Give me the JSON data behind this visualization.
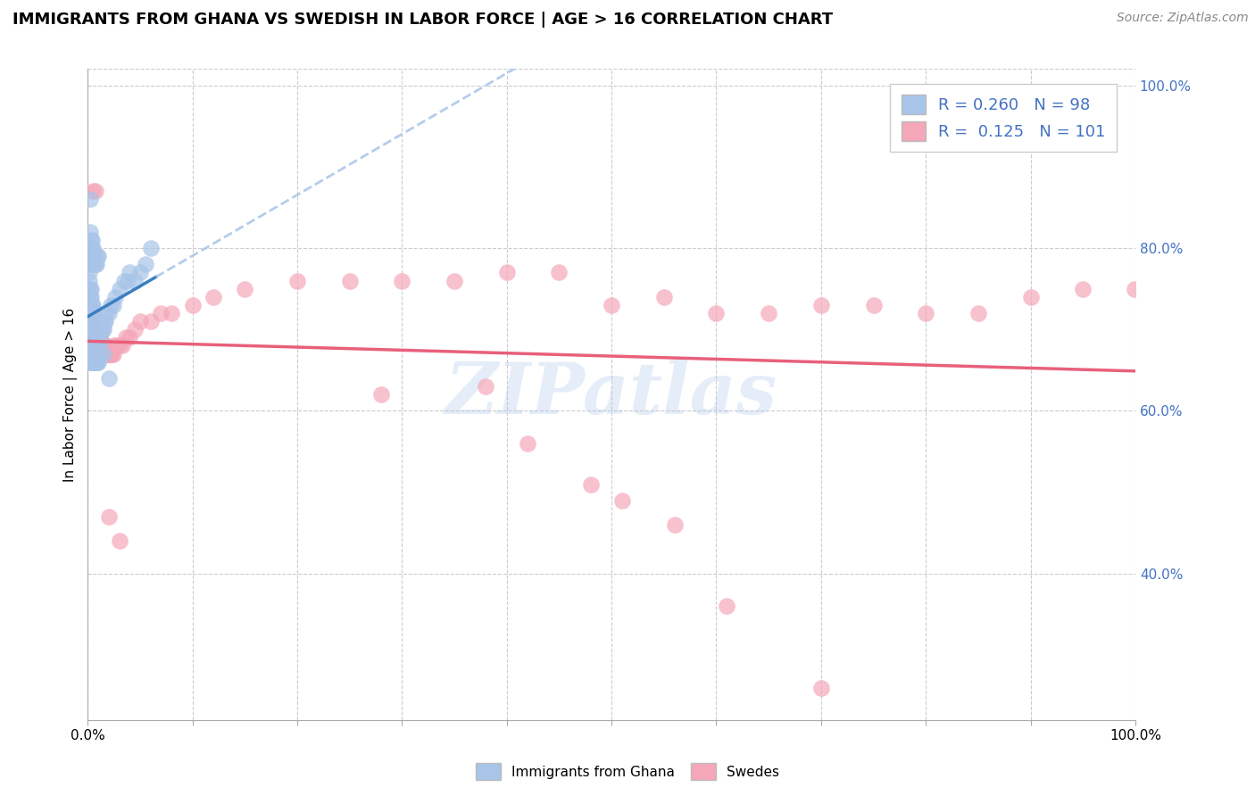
{
  "title": "IMMIGRANTS FROM GHANA VS SWEDISH IN LABOR FORCE | AGE > 16 CORRELATION CHART",
  "source": "Source: ZipAtlas.com",
  "ylabel": "In Labor Force | Age > 16",
  "legend_bottom": [
    "Immigrants from Ghana",
    "Swedes"
  ],
  "blue_R": 0.26,
  "blue_N": 98,
  "pink_R": 0.125,
  "pink_N": 101,
  "blue_color": "#a8c4e8",
  "pink_color": "#f4a7b9",
  "blue_line_color": "#3a7fc1",
  "pink_line_color": "#e8607a",
  "blue_dash_color": "#a8c4e8",
  "watermark": "ZIPatlas",
  "blue_points_x": [
    0.001,
    0.001,
    0.001,
    0.001,
    0.001,
    0.001,
    0.001,
    0.001,
    0.001,
    0.001,
    0.002,
    0.002,
    0.002,
    0.002,
    0.002,
    0.002,
    0.002,
    0.002,
    0.002,
    0.002,
    0.003,
    0.003,
    0.003,
    0.003,
    0.003,
    0.003,
    0.003,
    0.003,
    0.003,
    0.003,
    0.004,
    0.004,
    0.004,
    0.004,
    0.004,
    0.004,
    0.004,
    0.004,
    0.004,
    0.004,
    0.005,
    0.005,
    0.005,
    0.005,
    0.005,
    0.005,
    0.005,
    0.005,
    0.005,
    0.005,
    0.006,
    0.006,
    0.006,
    0.006,
    0.006,
    0.007,
    0.007,
    0.007,
    0.007,
    0.008,
    0.008,
    0.008,
    0.009,
    0.009,
    0.01,
    0.01,
    0.011,
    0.012,
    0.013,
    0.014,
    0.015,
    0.016,
    0.017,
    0.018,
    0.02,
    0.022,
    0.024,
    0.026,
    0.03,
    0.035,
    0.038,
    0.04,
    0.045,
    0.05,
    0.055,
    0.02,
    0.002,
    0.003,
    0.004,
    0.005,
    0.006,
    0.007,
    0.008,
    0.009,
    0.01,
    0.012,
    0.015,
    0.06
  ],
  "blue_points_y": [
    0.7,
    0.71,
    0.72,
    0.72,
    0.73,
    0.74,
    0.75,
    0.76,
    0.77,
    0.78,
    0.68,
    0.69,
    0.7,
    0.71,
    0.72,
    0.73,
    0.74,
    0.75,
    0.86,
    0.82,
    0.68,
    0.69,
    0.7,
    0.71,
    0.72,
    0.73,
    0.74,
    0.75,
    0.81,
    0.8,
    0.67,
    0.68,
    0.69,
    0.7,
    0.71,
    0.72,
    0.73,
    0.79,
    0.8,
    0.81,
    0.67,
    0.68,
    0.69,
    0.7,
    0.71,
    0.72,
    0.73,
    0.78,
    0.79,
    0.8,
    0.68,
    0.69,
    0.7,
    0.78,
    0.79,
    0.68,
    0.69,
    0.7,
    0.78,
    0.68,
    0.69,
    0.78,
    0.68,
    0.79,
    0.68,
    0.79,
    0.68,
    0.69,
    0.7,
    0.7,
    0.7,
    0.71,
    0.71,
    0.72,
    0.72,
    0.73,
    0.73,
    0.74,
    0.75,
    0.76,
    0.76,
    0.77,
    0.76,
    0.77,
    0.78,
    0.64,
    0.66,
    0.66,
    0.66,
    0.66,
    0.66,
    0.66,
    0.66,
    0.66,
    0.66,
    0.67,
    0.67,
    0.8
  ],
  "pink_points_x": [
    0.001,
    0.001,
    0.001,
    0.002,
    0.002,
    0.002,
    0.003,
    0.003,
    0.003,
    0.003,
    0.004,
    0.004,
    0.004,
    0.004,
    0.005,
    0.005,
    0.005,
    0.005,
    0.006,
    0.006,
    0.006,
    0.006,
    0.007,
    0.007,
    0.007,
    0.008,
    0.008,
    0.008,
    0.009,
    0.009,
    0.009,
    0.01,
    0.01,
    0.01,
    0.011,
    0.011,
    0.011,
    0.012,
    0.012,
    0.012,
    0.013,
    0.013,
    0.014,
    0.014,
    0.015,
    0.015,
    0.016,
    0.016,
    0.017,
    0.017,
    0.018,
    0.018,
    0.019,
    0.02,
    0.021,
    0.022,
    0.023,
    0.024,
    0.025,
    0.027,
    0.03,
    0.033,
    0.036,
    0.04,
    0.045,
    0.05,
    0.06,
    0.07,
    0.08,
    0.1,
    0.12,
    0.15,
    0.2,
    0.25,
    0.3,
    0.35,
    0.4,
    0.45,
    0.5,
    0.55,
    0.6,
    0.65,
    0.7,
    0.75,
    0.8,
    0.85,
    0.9,
    0.28,
    0.38,
    0.42,
    0.48,
    0.51,
    0.56,
    0.61,
    0.03,
    0.02,
    0.005,
    0.007,
    0.95,
    0.999,
    0.7
  ],
  "pink_points_y": [
    0.68,
    0.69,
    0.7,
    0.68,
    0.69,
    0.7,
    0.68,
    0.69,
    0.7,
    0.71,
    0.68,
    0.69,
    0.7,
    0.71,
    0.68,
    0.69,
    0.7,
    0.71,
    0.68,
    0.69,
    0.7,
    0.72,
    0.67,
    0.68,
    0.69,
    0.67,
    0.68,
    0.69,
    0.67,
    0.68,
    0.69,
    0.67,
    0.68,
    0.69,
    0.67,
    0.68,
    0.69,
    0.67,
    0.68,
    0.69,
    0.67,
    0.68,
    0.67,
    0.68,
    0.67,
    0.68,
    0.67,
    0.68,
    0.67,
    0.68,
    0.67,
    0.68,
    0.67,
    0.67,
    0.67,
    0.67,
    0.67,
    0.67,
    0.68,
    0.68,
    0.68,
    0.68,
    0.69,
    0.69,
    0.7,
    0.71,
    0.71,
    0.72,
    0.72,
    0.73,
    0.74,
    0.75,
    0.76,
    0.76,
    0.76,
    0.76,
    0.77,
    0.77,
    0.73,
    0.74,
    0.72,
    0.72,
    0.73,
    0.73,
    0.72,
    0.72,
    0.74,
    0.62,
    0.63,
    0.56,
    0.51,
    0.49,
    0.46,
    0.36,
    0.44,
    0.47,
    0.87,
    0.87,
    0.75,
    0.75,
    0.26
  ],
  "xlim": [
    0.0,
    1.0
  ],
  "ylim": [
    0.22,
    1.02
  ],
  "right_yticks": [
    0.4,
    0.6,
    0.8,
    1.0
  ],
  "right_ytick_labels": [
    "40.0%",
    "60.0%",
    "80.0%",
    "100.0%"
  ],
  "xtick_labels_show": [
    "0.0%",
    "100.0%"
  ],
  "xtick_positions_show": [
    0.0,
    1.0
  ]
}
